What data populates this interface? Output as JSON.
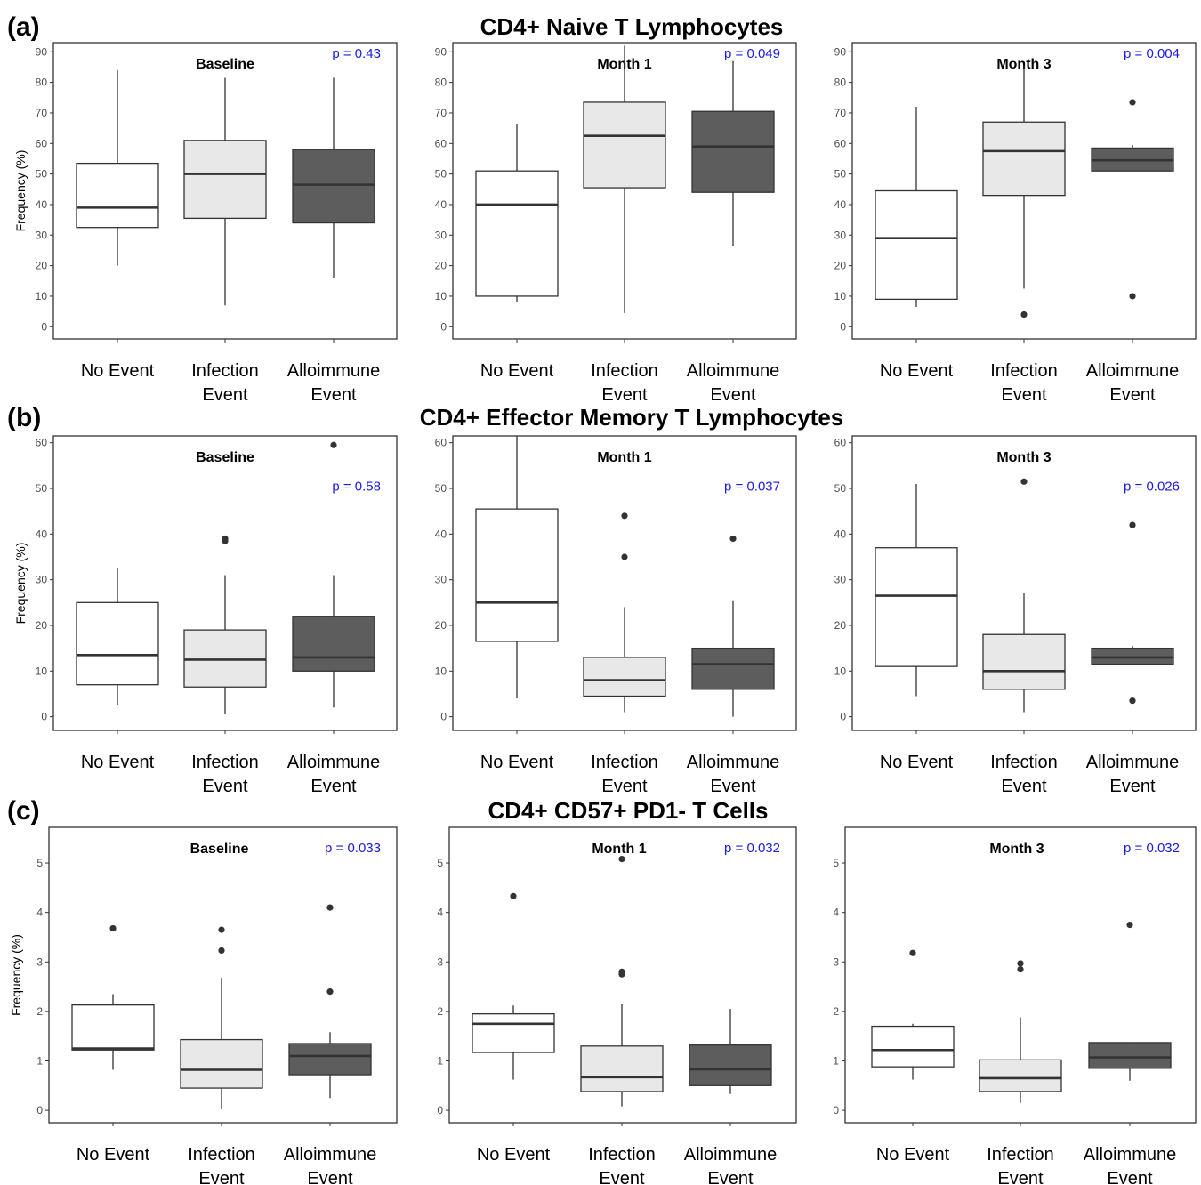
{
  "colors": {
    "no_event": "#ffffff",
    "infection_event": "#e8e8e8",
    "alloimmune_event": "#5d5d5d",
    "pvalue": "#1a1ae6",
    "outline": "#333333"
  },
  "panels": [
    {
      "label": "(a)",
      "title": "CD4+ Naive T Lymphocytes"
    },
    {
      "label": "(b)",
      "title": "CD4+ Effector Memory T Lymphocytes"
    },
    {
      "label": "(c)",
      "title": "CD4+ CD57+ PD1- T Cells"
    }
  ],
  "chart_data": [
    {
      "type": "box",
      "panel": 0,
      "title": "Baseline",
      "ylabel": "Frequency (%)",
      "ylim": [
        -4,
        93
      ],
      "yticks": [
        0,
        10,
        20,
        30,
        40,
        50,
        60,
        70,
        80,
        90
      ],
      "categories": [
        "No Event",
        "Infection Event",
        "Alloimmune Event"
      ],
      "p_value": "p = 0.43",
      "boxes": [
        {
          "whisker_low": 20,
          "q1": 32.5,
          "median": 39,
          "q3": 53.5,
          "whisker_high": 84,
          "outliers": []
        },
        {
          "whisker_low": 7,
          "q1": 35.5,
          "median": 50,
          "q3": 61,
          "whisker_high": 81.5,
          "outliers": []
        },
        {
          "whisker_low": 16,
          "q1": 34,
          "median": 46.5,
          "q3": 58,
          "whisker_high": 81.5,
          "outliers": []
        }
      ]
    },
    {
      "type": "box",
      "panel": 0,
      "title": "Month 1",
      "ylabel": "",
      "ylim": [
        -4,
        93
      ],
      "yticks": [
        0,
        10,
        20,
        30,
        40,
        50,
        60,
        70,
        80,
        90
      ],
      "categories": [
        "No Event",
        "Infection Event",
        "Alloimmune Event"
      ],
      "p_value": "p = 0.049",
      "boxes": [
        {
          "whisker_low": 8,
          "q1": 10,
          "median": 40,
          "q3": 51,
          "whisker_high": 66.5,
          "outliers": []
        },
        {
          "whisker_low": 4.5,
          "q1": 45.5,
          "median": 62.5,
          "q3": 73.5,
          "whisker_high": 92,
          "outliers": []
        },
        {
          "whisker_low": 26.5,
          "q1": 44,
          "median": 59,
          "q3": 70.5,
          "whisker_high": 87,
          "outliers": []
        }
      ]
    },
    {
      "type": "box",
      "panel": 0,
      "title": "Month 3",
      "ylabel": "",
      "ylim": [
        -4,
        93
      ],
      "yticks": [
        0,
        10,
        20,
        30,
        40,
        50,
        60,
        70,
        80,
        90
      ],
      "categories": [
        "No Event",
        "Infection Event",
        "Alloimmune Event"
      ],
      "p_value": "p = 0.004",
      "boxes": [
        {
          "whisker_low": 6.5,
          "q1": 9,
          "median": 29,
          "q3": 44.5,
          "whisker_high": 72,
          "outliers": []
        },
        {
          "whisker_low": 12.5,
          "q1": 43,
          "median": 57.5,
          "q3": 67,
          "whisker_high": 85.5,
          "outliers": [
            4
          ]
        },
        {
          "whisker_low": 51,
          "q1": 51,
          "median": 54.5,
          "q3": 58.5,
          "whisker_high": 59.5,
          "outliers": [
            73.5,
            10
          ]
        }
      ]
    },
    {
      "type": "box",
      "panel": 1,
      "title": "Baseline",
      "ylabel": "Frequency (%)",
      "ylim": [
        -3,
        61.5
      ],
      "yticks": [
        0,
        10,
        20,
        30,
        40,
        50,
        60
      ],
      "categories": [
        "No Event",
        "Infection Event",
        "Alloimmune Event"
      ],
      "p_value": "p = 0.58",
      "boxes": [
        {
          "whisker_low": 2.5,
          "q1": 7,
          "median": 13.5,
          "q3": 25,
          "whisker_high": 32.5,
          "outliers": []
        },
        {
          "whisker_low": 0.5,
          "q1": 6.5,
          "median": 12.5,
          "q3": 19,
          "whisker_high": 31,
          "outliers": [
            39,
            38.5
          ]
        },
        {
          "whisker_low": 2,
          "q1": 10,
          "median": 13,
          "q3": 22,
          "whisker_high": 31,
          "outliers": [
            59.5
          ]
        }
      ]
    },
    {
      "type": "box",
      "panel": 1,
      "title": "Month 1",
      "ylabel": "",
      "ylim": [
        -3,
        61.5
      ],
      "yticks": [
        0,
        10,
        20,
        30,
        40,
        50,
        60
      ],
      "categories": [
        "No Event",
        "Infection Event",
        "Alloimmune Event"
      ],
      "p_value": "p = 0.037",
      "boxes": [
        {
          "whisker_low": 4,
          "q1": 16.5,
          "median": 25,
          "q3": 45.5,
          "whisker_high": 61.5,
          "outliers": []
        },
        {
          "whisker_low": 1,
          "q1": 4.5,
          "median": 8,
          "q3": 13,
          "whisker_high": 24,
          "outliers": [
            44,
            35
          ]
        },
        {
          "whisker_low": 0,
          "q1": 6,
          "median": 11.5,
          "q3": 15,
          "whisker_high": 25.5,
          "outliers": [
            39
          ]
        }
      ]
    },
    {
      "type": "box",
      "panel": 1,
      "title": "Month 3",
      "ylabel": "",
      "ylim": [
        -3,
        61.5
      ],
      "yticks": [
        0,
        10,
        20,
        30,
        40,
        50,
        60
      ],
      "categories": [
        "No Event",
        "Infection Event",
        "Alloimmune Event"
      ],
      "p_value": "p = 0.026",
      "boxes": [
        {
          "whisker_low": 4.5,
          "q1": 11,
          "median": 26.5,
          "q3": 37,
          "whisker_high": 51,
          "outliers": []
        },
        {
          "whisker_low": 1,
          "q1": 6,
          "median": 10,
          "q3": 18,
          "whisker_high": 27,
          "outliers": [
            51.5
          ]
        },
        {
          "whisker_low": 11.5,
          "q1": 11.5,
          "median": 13,
          "q3": 15,
          "whisker_high": 15.5,
          "outliers": [
            42,
            3.5
          ]
        }
      ]
    },
    {
      "type": "box",
      "panel": 2,
      "title": "Baseline",
      "ylabel": "Frequency (%)",
      "ylim": [
        -0.25,
        5.72
      ],
      "yticks": [
        0,
        1,
        2,
        3,
        4,
        5
      ],
      "categories": [
        "No Event",
        "Infection Event",
        "Alloimmune Event"
      ],
      "p_value": "p = 0.033",
      "boxes": [
        {
          "whisker_low": 0.82,
          "q1": 1.22,
          "median": 1.25,
          "q3": 2.13,
          "whisker_high": 2.35,
          "outliers": [
            3.68
          ]
        },
        {
          "whisker_low": 0.02,
          "q1": 0.45,
          "median": 0.82,
          "q3": 1.43,
          "whisker_high": 2.68,
          "outliers": [
            3.65,
            3.23
          ]
        },
        {
          "whisker_low": 0.25,
          "q1": 0.72,
          "median": 1.1,
          "q3": 1.35,
          "whisker_high": 1.58,
          "outliers": [
            4.1,
            2.4
          ]
        }
      ]
    },
    {
      "type": "box",
      "panel": 2,
      "title": "Month 1",
      "ylabel": "",
      "ylim": [
        -0.25,
        5.72
      ],
      "yticks": [
        0,
        1,
        2,
        3,
        4,
        5
      ],
      "categories": [
        "No Event",
        "Infection Event",
        "Alloimmune Event"
      ],
      "p_value": "p = 0.032",
      "boxes": [
        {
          "whisker_low": 0.62,
          "q1": 1.17,
          "median": 1.75,
          "q3": 1.95,
          "whisker_high": 2.12,
          "outliers": [
            4.33
          ]
        },
        {
          "whisker_low": 0.08,
          "q1": 0.38,
          "median": 0.67,
          "q3": 1.3,
          "whisker_high": 2.15,
          "outliers": [
            5.08,
            2.8,
            2.75
          ]
        },
        {
          "whisker_low": 0.33,
          "q1": 0.5,
          "median": 0.83,
          "q3": 1.32,
          "whisker_high": 2.05,
          "outliers": []
        }
      ]
    },
    {
      "type": "box",
      "panel": 2,
      "title": "Month 3",
      "ylabel": "",
      "ylim": [
        -0.25,
        5.72
      ],
      "yticks": [
        0,
        1,
        2,
        3,
        4,
        5
      ],
      "categories": [
        "No Event",
        "Infection Event",
        "Alloimmune Event"
      ],
      "p_value": "p = 0.032",
      "boxes": [
        {
          "whisker_low": 0.62,
          "q1": 0.88,
          "median": 1.22,
          "q3": 1.7,
          "whisker_high": 1.75,
          "outliers": [
            3.18
          ]
        },
        {
          "whisker_low": 0.15,
          "q1": 0.38,
          "median": 0.65,
          "q3": 1.02,
          "whisker_high": 1.88,
          "outliers": [
            2.97,
            2.85
          ]
        },
        {
          "whisker_low": 0.6,
          "q1": 0.85,
          "median": 1.07,
          "q3": 1.37,
          "whisker_high": 1.38,
          "outliers": [
            3.75
          ]
        }
      ]
    }
  ]
}
